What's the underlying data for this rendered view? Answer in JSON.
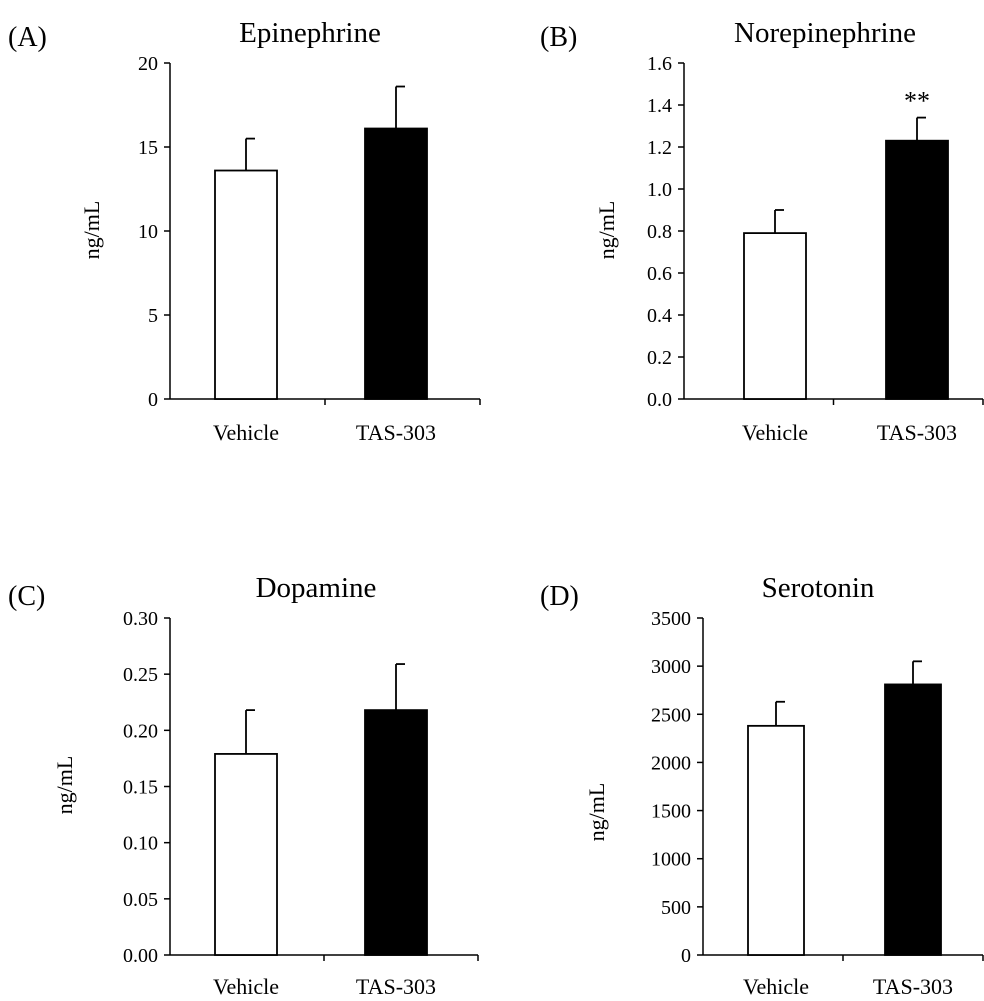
{
  "chart_data": [
    {
      "type": "bar",
      "panel_label": "(A)",
      "title": "Epinephrine",
      "xlabel": "",
      "ylabel": "ng/mL",
      "categories": [
        "Vehicle",
        "TAS-303"
      ],
      "values": [
        13.6,
        16.1
      ],
      "error": [
        1.9,
        2.5
      ],
      "bar_fills": [
        "#ffffff",
        "#000000"
      ],
      "significance": [
        "",
        ""
      ],
      "ylim": [
        0,
        20
      ],
      "yticks": [
        "0",
        "5",
        "10",
        "15",
        "20"
      ],
      "grid": false
    },
    {
      "type": "bar",
      "panel_label": "(B)",
      "title": "Norepinephrine",
      "xlabel": "",
      "ylabel": "ng/mL",
      "categories": [
        "Vehicle",
        "TAS-303"
      ],
      "values": [
        0.79,
        1.23
      ],
      "error": [
        0.11,
        0.11
      ],
      "bar_fills": [
        "#ffffff",
        "#000000"
      ],
      "significance": [
        "",
        "**"
      ],
      "ylim": [
        0,
        1.6
      ],
      "yticks": [
        "0.0",
        "0.2",
        "0.4",
        "0.6",
        "0.8",
        "1.0",
        "1.2",
        "1.4",
        "1.6"
      ],
      "grid": false
    },
    {
      "type": "bar",
      "panel_label": "(C)",
      "title": "Dopamine",
      "xlabel": "",
      "ylabel": "ng/mL",
      "categories": [
        "Vehicle",
        "TAS-303"
      ],
      "values": [
        0.179,
        0.218
      ],
      "error": [
        0.039,
        0.041
      ],
      "bar_fills": [
        "#ffffff",
        "#000000"
      ],
      "significance": [
        "",
        ""
      ],
      "ylim": [
        0,
        0.3
      ],
      "yticks": [
        "0.00",
        "0.05",
        "0.10",
        "0.15",
        "0.20",
        "0.25",
        "0.30"
      ],
      "grid": false
    },
    {
      "type": "bar",
      "panel_label": "(D)",
      "title": "Serotonin",
      "xlabel": "",
      "ylabel": "ng/mL",
      "categories": [
        "Vehicle",
        "TAS-303"
      ],
      "values": [
        2380,
        2810
      ],
      "error": [
        250,
        240
      ],
      "bar_fills": [
        "#ffffff",
        "#000000"
      ],
      "significance": [
        "",
        ""
      ],
      "ylim": [
        0,
        3500
      ],
      "yticks": [
        "0",
        "500",
        "1000",
        "1500",
        "2000",
        "2500",
        "3000",
        "3500"
      ],
      "grid": false
    }
  ]
}
